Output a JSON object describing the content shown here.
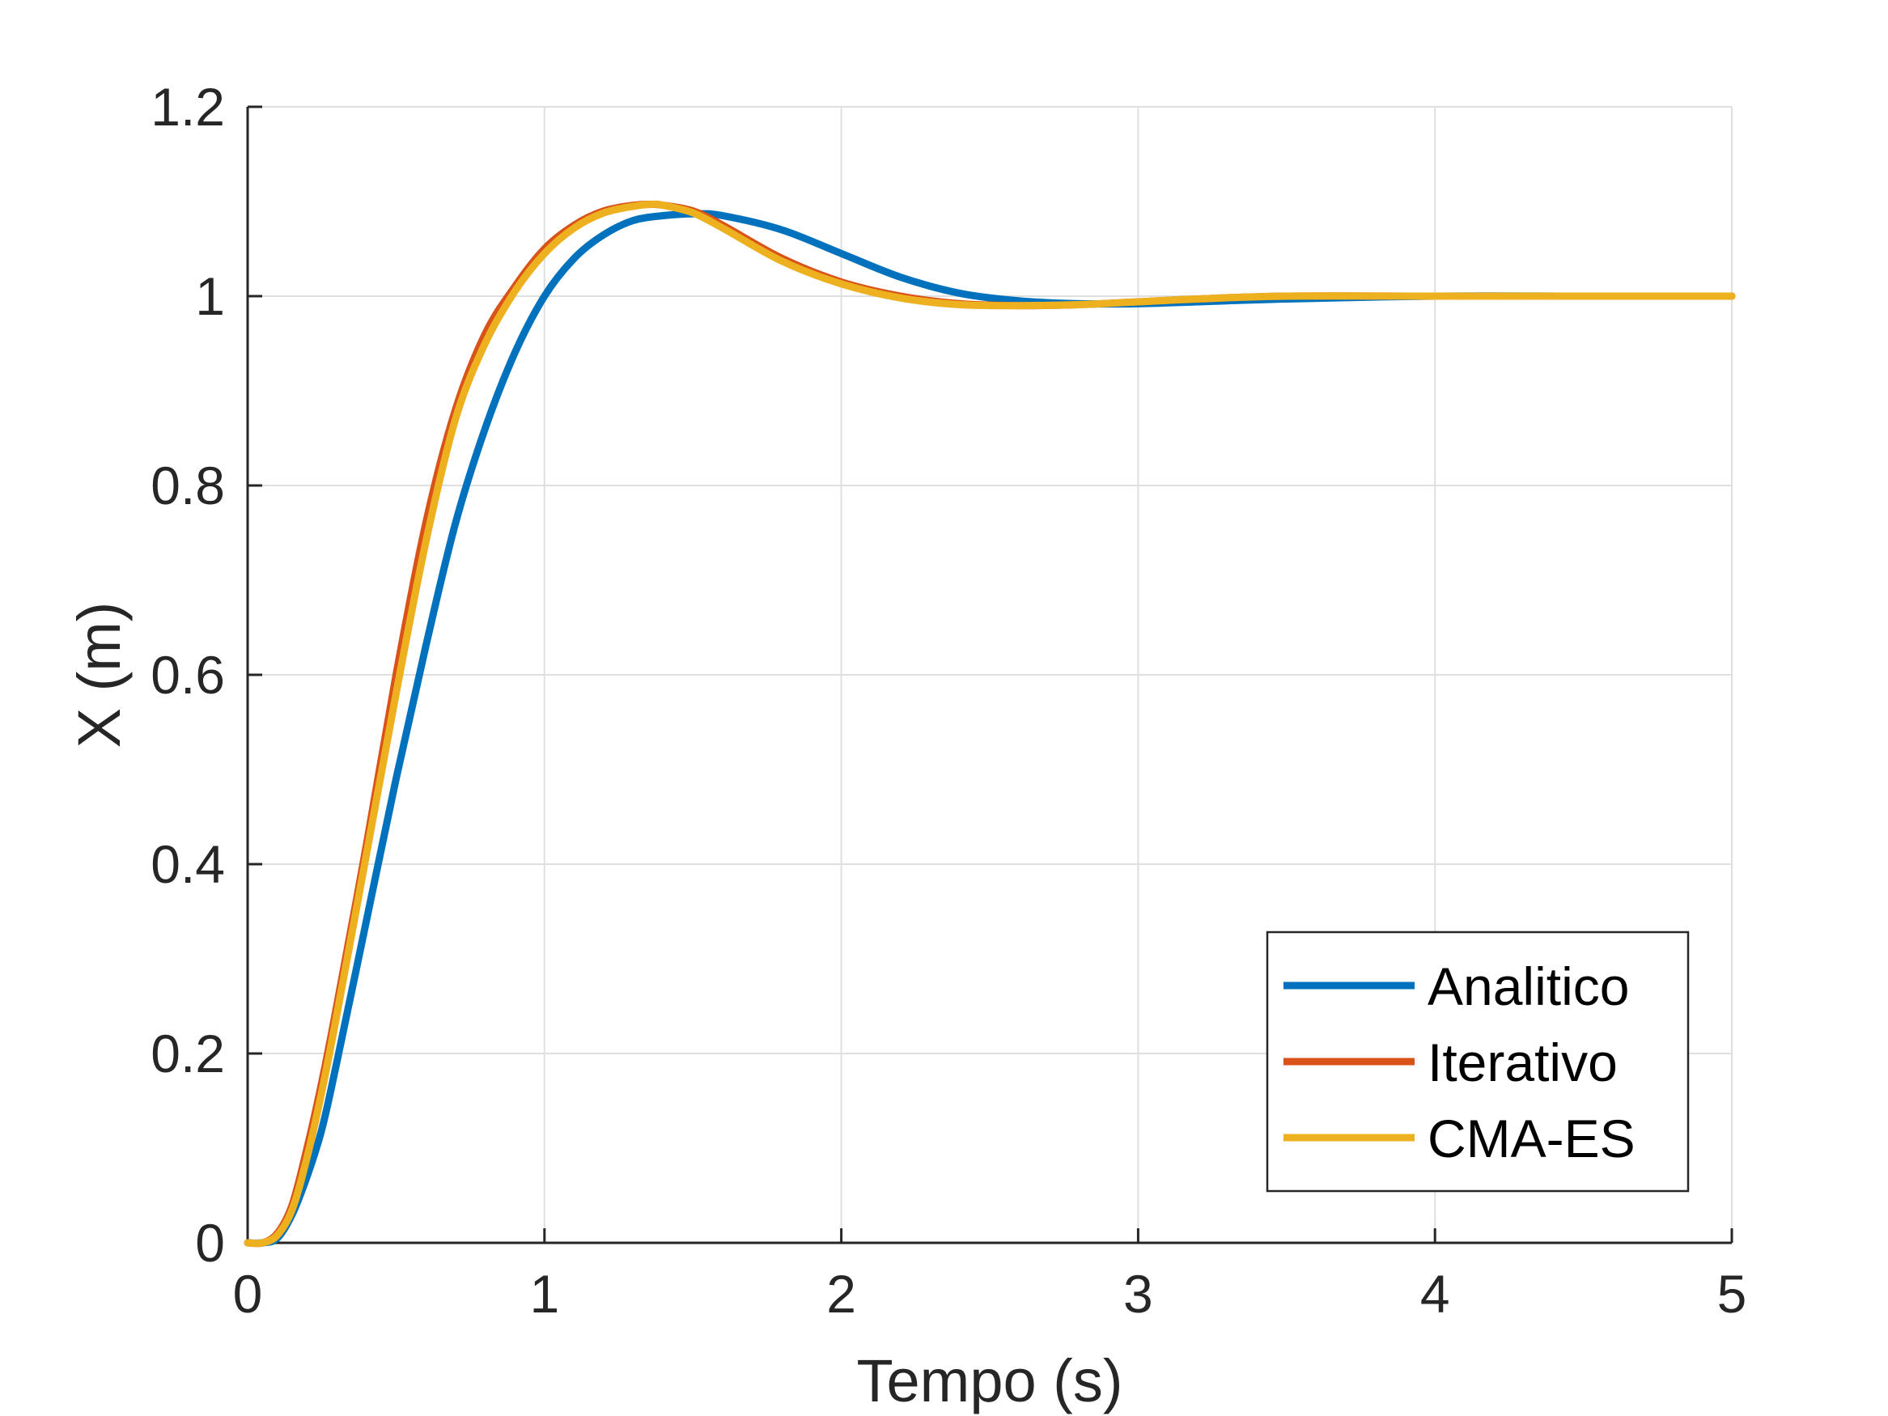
{
  "chart_data": {
    "type": "line",
    "title": "",
    "xlabel": "Tempo (s)",
    "ylabel": "X (m)",
    "xlim": [
      0,
      5
    ],
    "ylim": [
      0,
      1.2
    ],
    "x_ticks": [
      0,
      1,
      2,
      3,
      4,
      5
    ],
    "x_tick_labels": [
      "0",
      "1",
      "2",
      "3",
      "4",
      "5"
    ],
    "y_ticks": [
      0,
      0.2,
      0.4,
      0.6,
      0.8,
      1,
      1.2
    ],
    "y_tick_labels": [
      "0",
      "0.2",
      "0.4",
      "0.6",
      "0.8",
      "1",
      "1.2"
    ],
    "grid": true,
    "legend_position": "bottom-right",
    "series": [
      {
        "name": "Analitico",
        "color": "#0072BD",
        "x": [
          0,
          0.05,
          0.1,
          0.15,
          0.2,
          0.25,
          0.3,
          0.4,
          0.5,
          0.6,
          0.7,
          0.8,
          0.9,
          1.0,
          1.1,
          1.2,
          1.3,
          1.4,
          1.5,
          1.6,
          1.8,
          2.0,
          2.2,
          2.4,
          2.6,
          2.8,
          3.0,
          3.2,
          3.5,
          4.0,
          4.5,
          5.0
        ],
        "y": [
          0,
          0,
          0.005,
          0.03,
          0.07,
          0.12,
          0.19,
          0.34,
          0.49,
          0.63,
          0.76,
          0.86,
          0.94,
          1.0,
          1.04,
          1.065,
          1.08,
          1.085,
          1.087,
          1.085,
          1.07,
          1.045,
          1.02,
          1.003,
          0.995,
          0.992,
          0.992,
          0.994,
          0.997,
          1.0,
          1.0,
          1.0
        ]
      },
      {
        "name": "Iterativo",
        "color": "#D95319",
        "x": [
          0,
          0.05,
          0.1,
          0.15,
          0.2,
          0.25,
          0.3,
          0.4,
          0.5,
          0.6,
          0.7,
          0.8,
          0.9,
          1.0,
          1.1,
          1.2,
          1.3,
          1.36,
          1.4,
          1.5,
          1.6,
          1.8,
          2.0,
          2.2,
          2.4,
          2.6,
          2.8,
          3.0,
          3.2,
          3.5,
          4.0,
          4.5,
          5.0
        ],
        "y": [
          0,
          0,
          0.01,
          0.04,
          0.1,
          0.17,
          0.25,
          0.42,
          0.6,
          0.76,
          0.88,
          0.96,
          1.01,
          1.05,
          1.075,
          1.09,
          1.096,
          1.097,
          1.096,
          1.09,
          1.075,
          1.04,
          1.015,
          1.0,
          0.992,
          0.99,
          0.991,
          0.994,
          0.997,
          1.0,
          1.0,
          1.0,
          1.0
        ]
      },
      {
        "name": "CMA-ES",
        "color": "#EDB120",
        "x": [
          0,
          0.05,
          0.1,
          0.15,
          0.2,
          0.25,
          0.3,
          0.4,
          0.5,
          0.6,
          0.7,
          0.8,
          0.9,
          1.0,
          1.1,
          1.2,
          1.3,
          1.36,
          1.4,
          1.5,
          1.6,
          1.8,
          2.0,
          2.2,
          2.4,
          2.6,
          2.8,
          3.0,
          3.2,
          3.5,
          4.0,
          4.5,
          5.0
        ],
        "y": [
          0,
          0,
          0.008,
          0.035,
          0.09,
          0.16,
          0.24,
          0.41,
          0.58,
          0.74,
          0.87,
          0.95,
          1.005,
          1.045,
          1.072,
          1.088,
          1.095,
          1.097,
          1.096,
          1.088,
          1.072,
          1.037,
          1.013,
          0.998,
          0.991,
          0.99,
          0.991,
          0.994,
          0.997,
          1.0,
          1.0,
          1.0,
          1.0
        ]
      }
    ]
  }
}
